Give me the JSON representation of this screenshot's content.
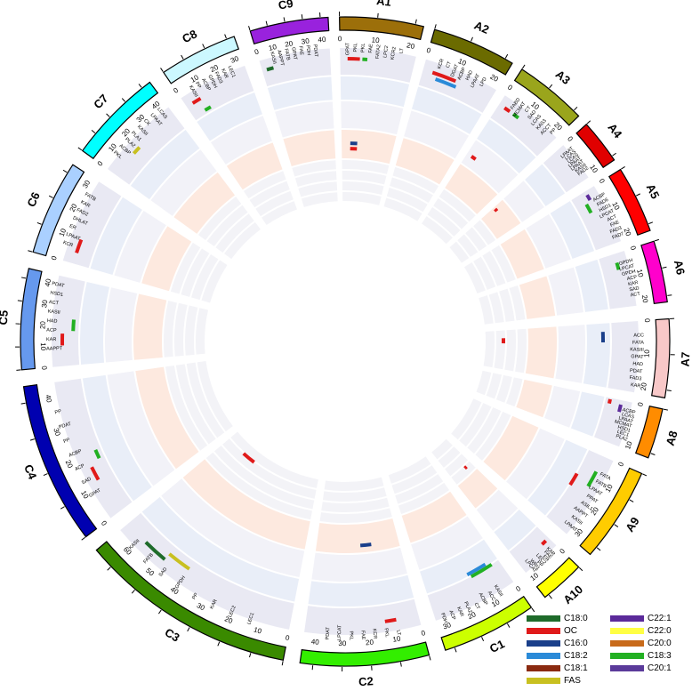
{
  "chromosomes": [
    {
      "name": "A1",
      "color": "#9c6f0a",
      "ticks": [
        "0",
        "10",
        "20"
      ]
    },
    {
      "name": "A2",
      "color": "#6b6b00",
      "ticks": [
        "0",
        "10",
        "20"
      ]
    },
    {
      "name": "A3",
      "color": "#9aa51c",
      "ticks": [
        "0",
        "10",
        "20"
      ]
    },
    {
      "name": "A4",
      "color": "#e00000",
      "ticks": [
        "0",
        "10"
      ]
    },
    {
      "name": "A5",
      "color": "#ff0000",
      "ticks": [
        "0",
        "10",
        "20"
      ]
    },
    {
      "name": "A6",
      "color": "#ff00cc",
      "ticks": [
        "0",
        "10",
        "20"
      ]
    },
    {
      "name": "A7",
      "color": "#f8c8c8",
      "ticks": [
        "0",
        "10",
        "20"
      ]
    },
    {
      "name": "A8",
      "color": "#ff8c00",
      "ticks": [
        "0",
        "10"
      ]
    },
    {
      "name": "A9",
      "color": "#ffcc00",
      "ticks": [
        "0",
        "10",
        "20",
        "30"
      ]
    },
    {
      "name": "A10",
      "color": "#ffff00",
      "ticks": [
        "0",
        "10"
      ]
    },
    {
      "name": "C1",
      "color": "#ccff00",
      "ticks": [
        "0",
        "10",
        "20",
        "30"
      ]
    },
    {
      "name": "C2",
      "color": "#33ee00",
      "ticks": [
        "0",
        "10",
        "20",
        "30",
        "40"
      ]
    },
    {
      "name": "C3",
      "color": "#3a8a00",
      "ticks": [
        "0",
        "10",
        "20",
        "30",
        "40",
        "50",
        "60"
      ]
    },
    {
      "name": "C4",
      "color": "#0000b0",
      "ticks": [
        "0",
        "10",
        "20",
        "30",
        "40"
      ]
    },
    {
      "name": "C5",
      "color": "#6699ee",
      "ticks": [
        "0",
        "10",
        "20",
        "30",
        "40"
      ]
    },
    {
      "name": "C6",
      "color": "#aad0ff",
      "ticks": [
        "0",
        "10",
        "20",
        "30"
      ]
    },
    {
      "name": "C7",
      "color": "#00ffff",
      "ticks": [
        "0",
        "10",
        "20",
        "30",
        "40"
      ]
    },
    {
      "name": "C8",
      "color": "#ccf8ff",
      "ticks": [
        "0",
        "10",
        "20",
        "30"
      ]
    },
    {
      "name": "C9",
      "color": "#9922dd",
      "ticks": [
        "0",
        "10",
        "20",
        "30",
        "40"
      ]
    }
  ],
  "gene_labels": [
    "GPAT",
    "PKL",
    "PKL",
    "FAE",
    "FATA2",
    "LPC2",
    "KCR2",
    "LT",
    "KCR",
    "CT",
    "DGAT",
    "ACBP",
    "HAD",
    "LPAAT",
    "LPD",
    "FABD",
    "MCMAT",
    "CT",
    "SAD",
    "LCAS",
    "KAS3",
    "ACCT",
    "PP",
    "LPAAT",
    "LCAS",
    "LCAS",
    "LPAAT",
    "LPAAT",
    "KASII",
    "FAD2",
    "ACBP",
    "FAD6",
    "HSD1",
    "LPCAT",
    "ACT",
    "FAE",
    "FAD3",
    "FAD7",
    "GPDH",
    "LPCAT",
    "GPDH",
    "ACP",
    "KAR",
    "SAD",
    "ACT",
    "ACC",
    "FATA",
    "KASIII",
    "GPAT",
    "HAD",
    "PDAT",
    "FAD3",
    "KAR",
    "ACBP",
    "LCAS",
    "LPAAT",
    "MCMAT",
    "HSD1",
    "LEC1",
    "PLA2",
    "FATA",
    "FATB",
    "LPAAT",
    "PPAT",
    "ASIL1",
    "AAPPT",
    "KASII",
    "LPAAT",
    "KAR",
    "FAE",
    "ER",
    "LEC2",
    "PP",
    "WRI1",
    "LPCAT",
    "KASII",
    "ACC",
    "ACBP",
    "CT",
    "PLA2",
    "KAR",
    "ACP",
    "PDH",
    "LT",
    "PKL",
    "KCR",
    "FAE",
    "PKL",
    "LPCAT",
    "PDAT",
    "LEC1",
    "LEC2",
    "KAR",
    "PP",
    "GPDH",
    "SAD",
    "FATB",
    "KASII",
    "GPAT",
    "SAD",
    "ACP",
    "ACBP",
    "PP",
    "PDAT",
    "PP",
    "AAPPT",
    "KAR",
    "ACP",
    "HAD",
    "KASII",
    "ACT",
    "HSD1",
    "PDAT",
    "KCR",
    "LPAAT",
    "ER",
    "DHLAT",
    "FAD2",
    "KAR",
    "FATB",
    "PKL",
    "ACBP",
    "PLA2",
    "PLA1",
    "KASII",
    "CK",
    "LPAAT",
    "LCAS",
    "KASII",
    "PP",
    "ACBP",
    "GPDH",
    "FAD3",
    "KAR",
    "LEC1",
    "KASII",
    "AAPPT",
    "FATB",
    "GPAT",
    "FAE",
    "PDH",
    "PDAT"
  ],
  "legend": [
    {
      "label": "C18:0",
      "color": "#1e6b2a"
    },
    {
      "label": "C22:1",
      "color": "#5b2a9a"
    },
    {
      "label": "OC",
      "color": "#e01a1a"
    },
    {
      "label": "C22:0",
      "color": "#ffff44"
    },
    {
      "label": "C16:0",
      "color": "#1a3f8a"
    },
    {
      "label": "C20:0",
      "color": "#c86a1a"
    },
    {
      "label": "C18:2",
      "color": "#2a8ad8"
    },
    {
      "label": "C18:3",
      "color": "#22b022"
    },
    {
      "label": "C18:1",
      "color": "#8a2a10"
    },
    {
      "label": "C20:1",
      "color": "#5a3a9a"
    },
    {
      "label": "FAS",
      "color": "#c8c020"
    }
  ]
}
